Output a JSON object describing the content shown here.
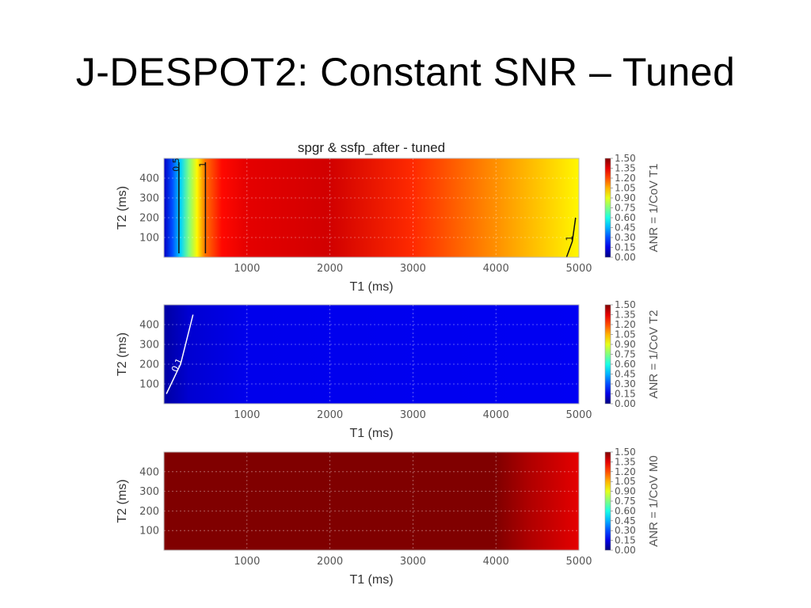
{
  "slide": {
    "title": "J-DESPOT2: Constant SNR – Tuned"
  },
  "chart_data": [
    {
      "type": "heatmap",
      "title": "spgr & ssfp_after - tuned",
      "xlabel": "T1 (ms)",
      "ylabel": "T2 (ms)",
      "colorbar_label": "ANR = 1/CoV T1",
      "xlim": [
        0,
        5000
      ],
      "ylim": [
        0,
        500
      ],
      "xticks": [
        1000,
        2000,
        3000,
        4000,
        5000
      ],
      "yticks": [
        100,
        200,
        300,
        400
      ],
      "clim": [
        0,
        1.5
      ],
      "colorbar_ticks": [
        "1.50",
        "1.35",
        "1.20",
        "1.05",
        "0.90",
        "0.75",
        "0.60",
        "0.45",
        "0.30",
        "0.15",
        "0.00"
      ],
      "colormap": "jet",
      "grid": true,
      "value_profile_along_T1": [
        {
          "t1": 0,
          "value": 0.1
        },
        {
          "t1": 100,
          "value": 0.3
        },
        {
          "t1": 200,
          "value": 0.5
        },
        {
          "t1": 300,
          "value": 0.75
        },
        {
          "t1": 400,
          "value": 0.95
        },
        {
          "t1": 500,
          "value": 1.15
        },
        {
          "t1": 700,
          "value": 1.3
        },
        {
          "t1": 1000,
          "value": 1.35
        },
        {
          "t1": 2000,
          "value": 1.38
        },
        {
          "t1": 3000,
          "value": 1.25
        },
        {
          "t1": 4000,
          "value": 1.1
        },
        {
          "t1": 5000,
          "value": 0.95
        }
      ],
      "contours": [
        {
          "label": "0.5",
          "points": [
            [
              180,
              20
            ],
            [
              180,
              480
            ]
          ]
        },
        {
          "label": "1",
          "points": [
            [
              500,
              20
            ],
            [
              500,
              480
            ]
          ]
        },
        {
          "label": "1",
          "points": [
            [
              4850,
              0
            ],
            [
              4920,
              80
            ],
            [
              4960,
              200
            ]
          ]
        }
      ]
    },
    {
      "type": "heatmap",
      "title": "",
      "xlabel": "T1 (ms)",
      "ylabel": "T2 (ms)",
      "colorbar_label": "ANR = 1/CoV T2",
      "xlim": [
        0,
        5000
      ],
      "ylim": [
        0,
        500
      ],
      "xticks": [
        1000,
        2000,
        3000,
        4000,
        5000
      ],
      "yticks": [
        100,
        200,
        300,
        400
      ],
      "clim": [
        0,
        1.5
      ],
      "colorbar_ticks": [
        "1.50",
        "1.35",
        "1.20",
        "1.05",
        "0.90",
        "0.75",
        "0.60",
        "0.45",
        "0.30",
        "0.15",
        "0.00"
      ],
      "colormap": "jet",
      "grid": true,
      "value_profile_along_T1": [
        {
          "t1": 0,
          "value": 0.05
        },
        {
          "t1": 300,
          "value": 0.12
        },
        {
          "t1": 1000,
          "value": 0.16
        },
        {
          "t1": 5000,
          "value": 0.17
        }
      ],
      "contours": [
        {
          "label": "0.1",
          "points": [
            [
              30,
              50
            ],
            [
              200,
              200
            ],
            [
              350,
              450
            ]
          ]
        }
      ]
    },
    {
      "type": "heatmap",
      "title": "",
      "xlabel": "T1 (ms)",
      "ylabel": "T2 (ms)",
      "colorbar_label": "ANR = 1/CoV M0",
      "xlim": [
        0,
        5000
      ],
      "ylim": [
        0,
        500
      ],
      "xticks": [
        1000,
        2000,
        3000,
        4000,
        5000
      ],
      "yticks": [
        100,
        200,
        300,
        400
      ],
      "clim": [
        0,
        1.5
      ],
      "colorbar_ticks": [
        "1.50",
        "1.35",
        "1.20",
        "1.05",
        "0.90",
        "0.75",
        "0.60",
        "0.45",
        "0.30",
        "0.15",
        "0.00"
      ],
      "colormap": "jet",
      "grid": true,
      "value_profile_along_T1": [
        {
          "t1": 0,
          "value": 1.5
        },
        {
          "t1": 4000,
          "value": 1.5
        },
        {
          "t1": 4400,
          "value": 1.43
        },
        {
          "t1": 5000,
          "value": 1.35
        }
      ],
      "contours": []
    }
  ]
}
